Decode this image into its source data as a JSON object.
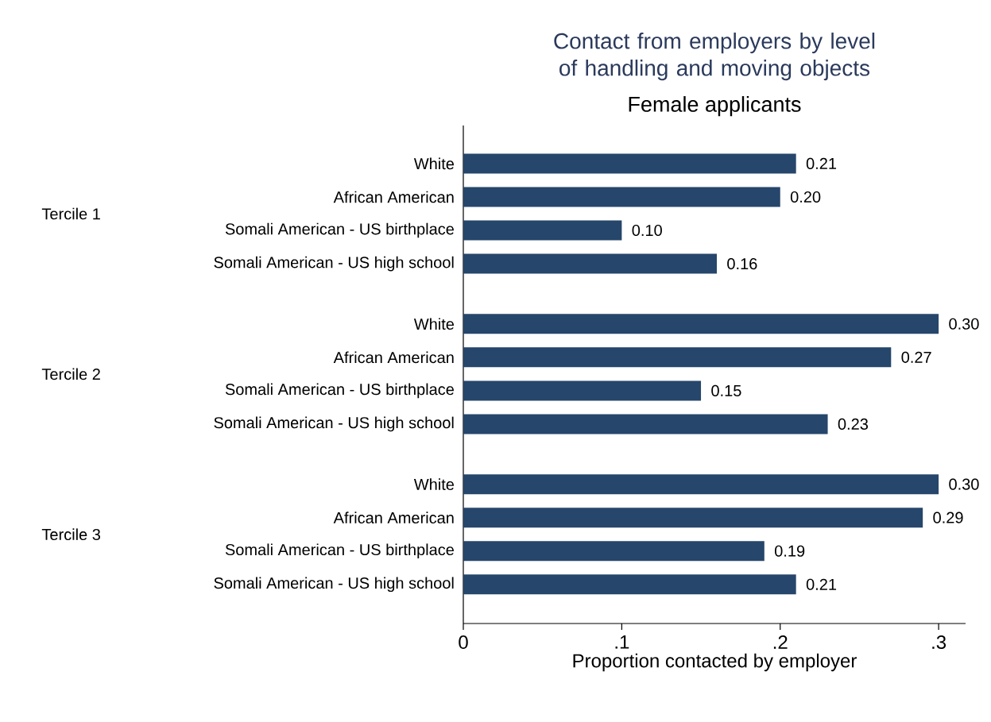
{
  "chart_data": {
    "type": "bar",
    "orientation": "horizontal",
    "title": "Contact from employers by level of handling and moving objects",
    "subtitle": "Female applicants",
    "xlabel": "Proportion contacted by employer",
    "categories": [
      "White",
      "African American",
      "Somali American - US birthplace",
      "Somali American - US high school",
      "White",
      "African American",
      "Somali American - US birthplace",
      "Somali American - US high school",
      "White",
      "African American",
      "Somali American - US birthplace",
      "Somali American - US high school"
    ],
    "values": [
      0.21,
      0.2,
      0.1,
      0.16,
      0.3,
      0.27,
      0.15,
      0.23,
      0.3,
      0.29,
      0.19,
      0.21
    ],
    "value_labels": [
      "0.21",
      "0.20",
      "0.10",
      "0.16",
      "0.30",
      "0.27",
      "0.15",
      "0.23",
      "0.30",
      "0.29",
      "0.19",
      "0.21"
    ],
    "color": "#26466b",
    "annotations": [
      "Tercile 1",
      "Tercile 2",
      "Tercile 3"
    ],
    "xlim": [
      0,
      0.317
    ],
    "xticks": [
      0,
      {
        "value": 0.1,
        "label": ".1"
      },
      {
        "value": 0.2,
        "label": ".2"
      },
      {
        "value": 0.3,
        "label": ".3"
      }
    ],
    "grid": false
  }
}
